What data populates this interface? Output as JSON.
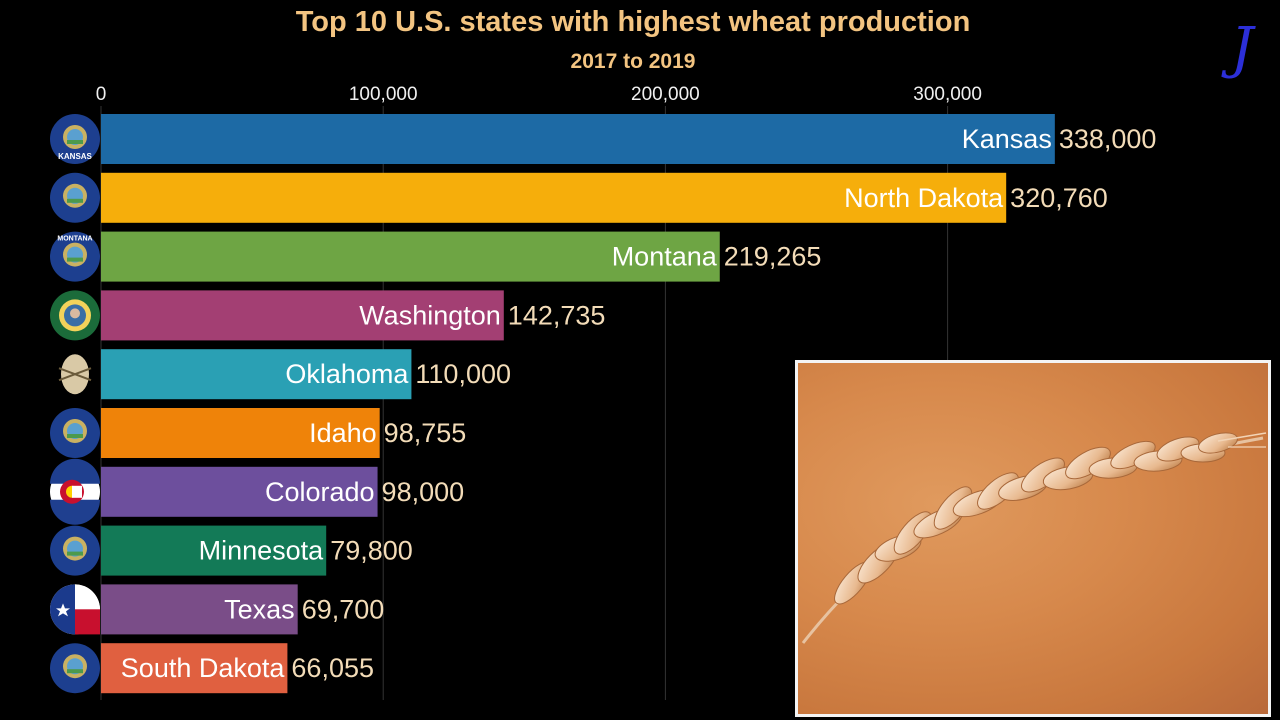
{
  "chart_data": {
    "type": "bar",
    "orientation": "horizontal",
    "title": "Top 10 U.S. states with highest wheat production",
    "subtitle": "2017 to 2019",
    "xlim": [
      0,
      340000
    ],
    "xticks": [
      "0",
      "100,000",
      "200,000",
      "300,000"
    ],
    "xtick_values": [
      0,
      100000,
      200000,
      300000
    ],
    "categories": [
      "Kansas",
      "North Dakota",
      "Montana",
      "Washington",
      "Oklahoma",
      "Idaho",
      "Colorado",
      "Minnesota",
      "Texas",
      "South Dakota"
    ],
    "values": [
      338000,
      320760,
      219265,
      142735,
      110000,
      98755,
      98000,
      79800,
      69700,
      66055
    ],
    "value_labels": [
      "338,000",
      "320,760",
      "219,265",
      "142,735",
      "110,000",
      "98,755",
      "98,000",
      "79,800",
      "69,700",
      "66,055"
    ],
    "colors": [
      "#1d6aa5",
      "#f6ae0b",
      "#6ea544",
      "#a33f73",
      "#2aa0b4",
      "#ef8309",
      "#6d4f9d",
      "#137a57",
      "#7a4d88",
      "#e06040"
    ],
    "grid": true
  },
  "logo_text": "J",
  "state_flag_labels": [
    "KANSAS",
    "MONTANA"
  ]
}
